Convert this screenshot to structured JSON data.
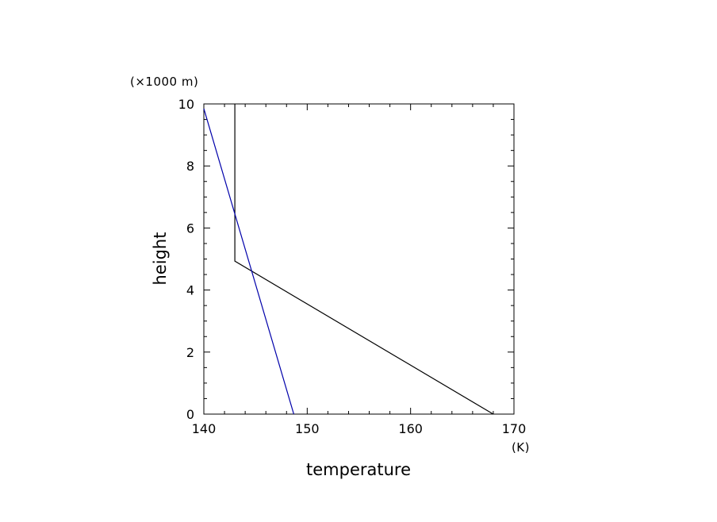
{
  "chart_data": {
    "type": "line",
    "title": "",
    "xlabel": "temperature",
    "ylabel": "height",
    "x_unit": "(K)",
    "y_unit": "(×1000 m)",
    "xlim": [
      140,
      170
    ],
    "ylim": [
      0,
      10
    ],
    "x_ticks": [
      140,
      150,
      160,
      170
    ],
    "y_ticks": [
      0,
      2,
      4,
      6,
      8,
      10
    ],
    "grid": false,
    "legend": "none",
    "series": [
      {
        "color": "#000000",
        "x": [
          168,
          143,
          143
        ],
        "y": [
          0,
          4.93,
          10
        ]
      },
      {
        "color": "#0000aa",
        "x": [
          148.7,
          140
        ],
        "y": [
          0,
          9.85
        ]
      }
    ]
  }
}
